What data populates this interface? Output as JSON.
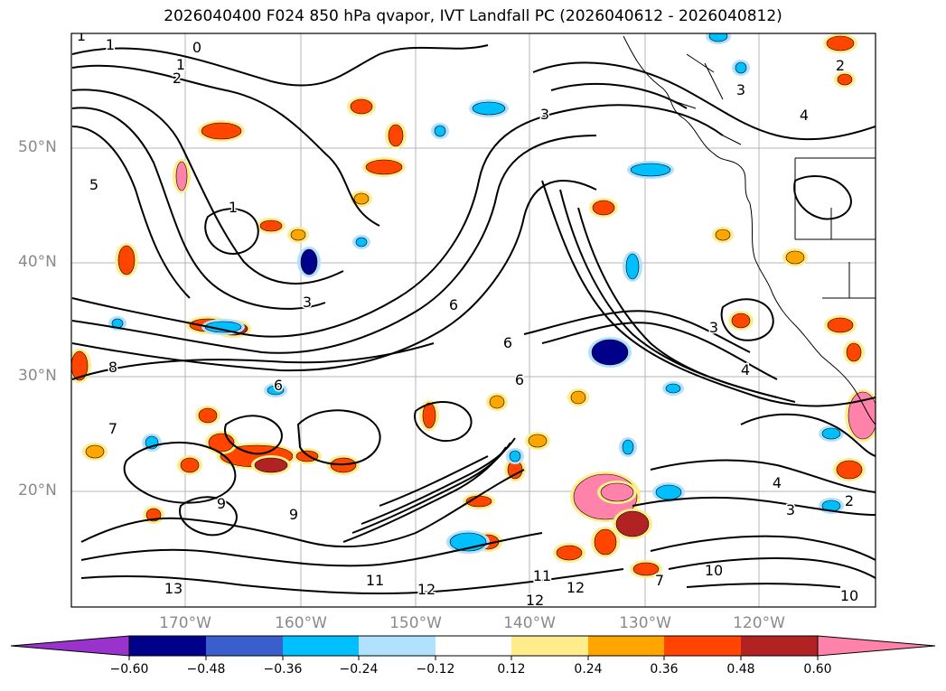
{
  "title": "2026040400 F024 850 hPa qvapor, IVT Landfall PC (2026040612 - 2026040812)",
  "map": {
    "lat_labels": [
      "50°N",
      "40°N",
      "30°N",
      "20°N"
    ],
    "lon_labels": [
      "170°W",
      "160°W",
      "150°W",
      "140°W",
      "130°W",
      "120°W"
    ],
    "contour_labels": [
      "1",
      "1",
      "1",
      "1",
      "0",
      "2",
      "2",
      "3",
      "3",
      "4",
      "5",
      "6",
      "6",
      "6",
      "6",
      "7",
      "8",
      "9",
      "9",
      "10",
      "11",
      "11",
      "12",
      "12",
      "12",
      "13",
      "3",
      "4",
      "2",
      "3",
      "4",
      "10",
      "7",
      "3"
    ]
  },
  "colorbar": {
    "colors": [
      "#9933cc",
      "#00008b",
      "#3a5fcd",
      "#00bfff",
      "#b0e2ff",
      "#ffffff",
      "#ffec8b",
      "#ffa500",
      "#ff4500",
      "#b22222",
      "#ff82ab"
    ],
    "tick_labels": [
      "−0.60",
      "−0.48",
      "−0.36",
      "−0.24",
      "−0.12",
      "0.12",
      "0.24",
      "0.36",
      "0.48",
      "0.60"
    ]
  }
}
